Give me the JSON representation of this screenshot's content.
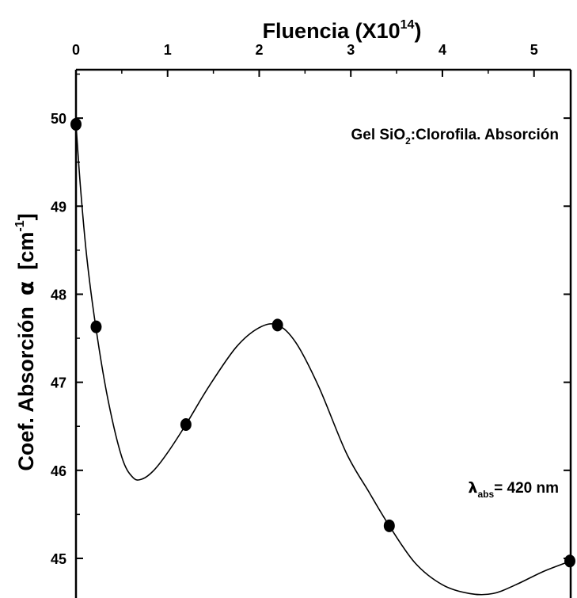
{
  "chart_data": {
    "type": "scatter",
    "title": "",
    "xlabel": {
      "base": "Fluencia (X10",
      "sup": "14",
      "end": ")"
    },
    "ylabel": {
      "main": "Coef. Absorción",
      "greek": "α",
      "unit_open": "[cm",
      "unit_sup": "-1",
      "unit_close": "]"
    },
    "annotation_sample": {
      "pre": "Gel SiO",
      "sub": "2",
      "post": ":Clorofila.  Absorción"
    },
    "annotation_wavelength": {
      "sym": "λ",
      "sub": "abs",
      "post": "= 420 nm"
    },
    "xlim": [
      0,
      5.4
    ],
    "ylim": [
      44.55,
      50.55
    ],
    "xticks": [
      0,
      1,
      2,
      3,
      4,
      5
    ],
    "yticks": [
      45,
      46,
      47,
      48,
      49,
      50
    ],
    "grid": false,
    "x_axis_position": "top",
    "series": [
      {
        "x": [
          0.0,
          0.22,
          1.2,
          2.2,
          3.42,
          5.4
        ],
        "y": [
          49.93,
          47.63,
          46.52,
          47.65,
          45.37,
          44.97
        ]
      }
    ],
    "fit_curve": {
      "x": [
        0.0,
        0.05,
        0.12,
        0.22,
        0.35,
        0.5,
        0.62,
        0.72,
        0.85,
        1.0,
        1.2,
        1.45,
        1.75,
        2.0,
        2.2,
        2.4,
        2.65,
        2.95,
        3.2,
        3.42,
        3.7,
        4.0,
        4.3,
        4.55,
        4.8,
        5.1,
        5.4
      ],
      "y": [
        49.93,
        49.2,
        48.4,
        47.6,
        46.8,
        46.15,
        45.92,
        45.9,
        46.0,
        46.2,
        46.52,
        46.95,
        47.4,
        47.62,
        47.65,
        47.45,
        46.95,
        46.2,
        45.75,
        45.37,
        44.95,
        44.7,
        44.6,
        44.6,
        44.7,
        44.85,
        44.97
      ]
    }
  }
}
